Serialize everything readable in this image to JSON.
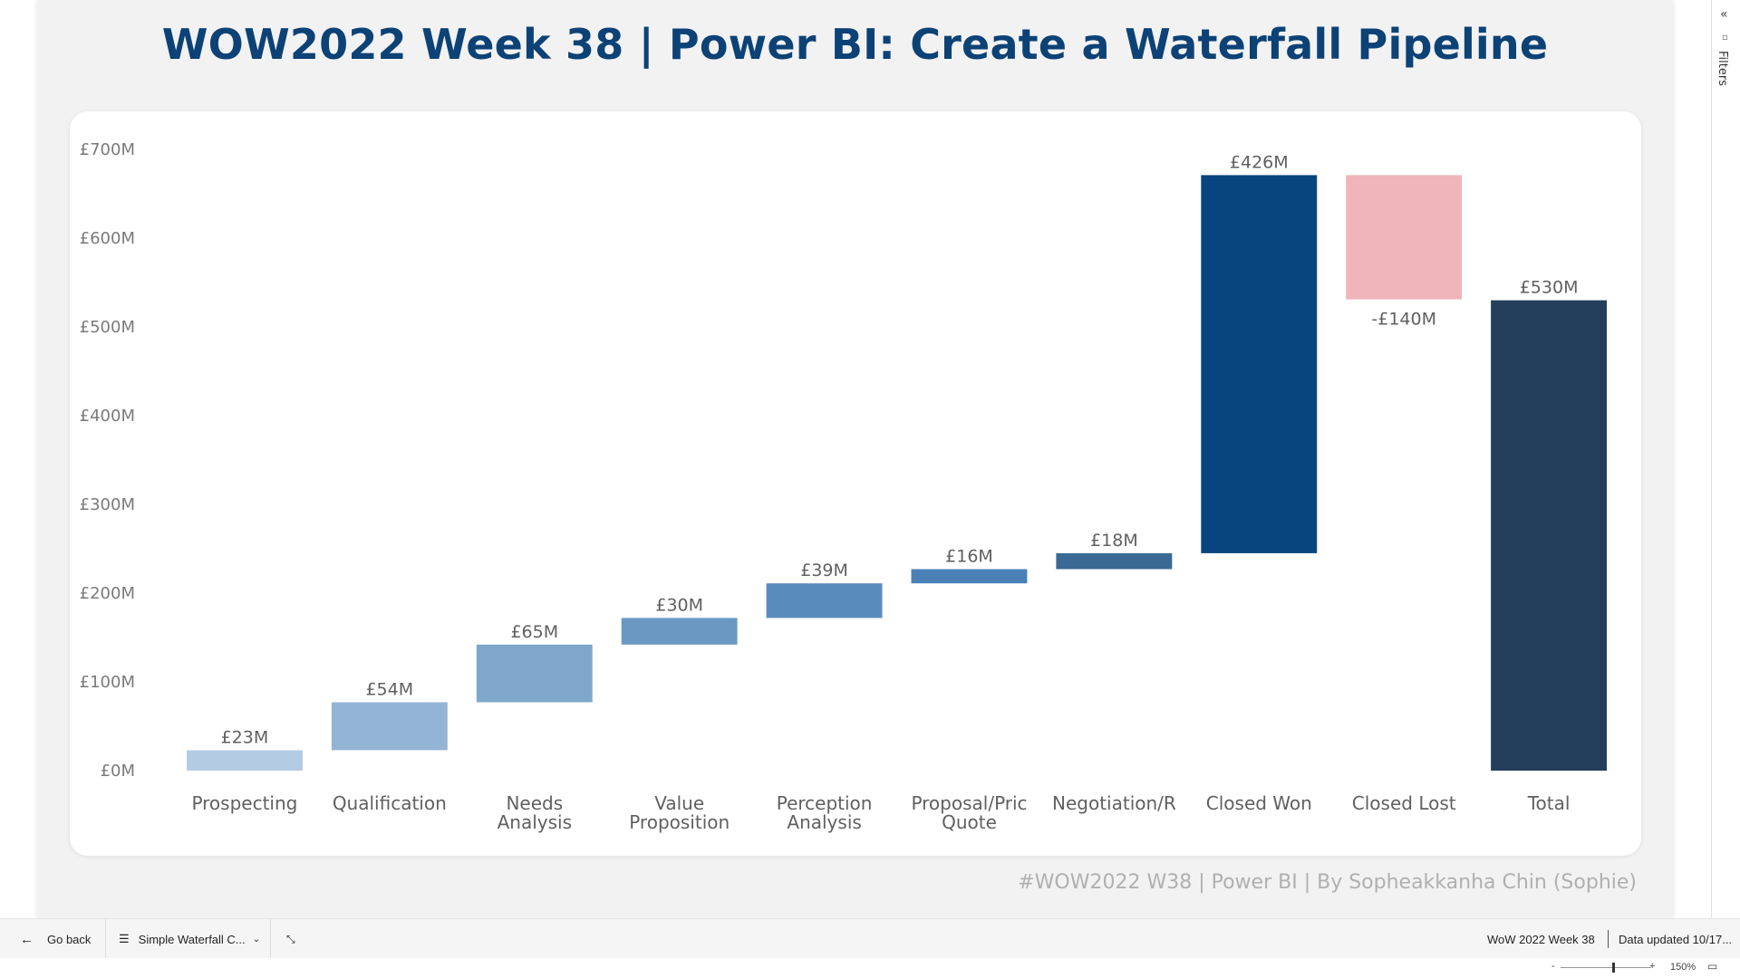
{
  "report": {
    "title": "WOW2022 Week 38 | Power BI: Create a Waterfall Pipeline",
    "footer_credit": "#WOW2022 W38 | Power BI | By Sopheakkanha Chin (Sophie)"
  },
  "filters_pane": {
    "label": "Filters",
    "collapse_icon": "chevron-double-left-icon"
  },
  "bottom_bar": {
    "go_back_label": "Go back",
    "page_selector_label": "Simple Waterfall C...",
    "report_name": "WoW 2022 Week 38",
    "data_updated": "Data updated 10/17..."
  },
  "status_bar": {
    "zoom_minus": "-",
    "zoom_plus": "+",
    "zoom_level": "150%",
    "zoom_fraction": 0.58
  },
  "colors": {
    "title": "#0c4276",
    "closed_lost": "#efb5b8",
    "total": "#243f5c"
  },
  "chart_data": {
    "type": "bar",
    "subtype": "waterfall",
    "title": "",
    "xlabel": "",
    "ylabel": "",
    "ylim": [
      0,
      700
    ],
    "y_ticks": [
      0,
      100,
      200,
      300,
      400,
      500,
      600,
      700
    ],
    "y_tick_labels": [
      "£0M",
      "£100M",
      "£200M",
      "£300M",
      "£400M",
      "£500M",
      "£600M",
      "£700M"
    ],
    "grid": false,
    "legend": "none",
    "categories": [
      [
        "Prospecting"
      ],
      [
        "Qualification"
      ],
      [
        "Needs",
        "Analysis"
      ],
      [
        "Value",
        "Proposition"
      ],
      [
        "Perception",
        "Analysis"
      ],
      [
        "Proposal/Pric",
        "Quote"
      ],
      [
        "Negotiation/R"
      ],
      [
        "Closed Won"
      ],
      [
        "Closed Lost"
      ],
      [
        "Total"
      ]
    ],
    "values": [
      23,
      54,
      65,
      30,
      39,
      16,
      18,
      426,
      -140,
      530
    ],
    "value_labels": [
      "£23M",
      "£54M",
      "£65M",
      "£30M",
      "£39M",
      "£16M",
      "£18M",
      "£426M",
      "-£140M",
      "£530M"
    ],
    "is_total": [
      false,
      false,
      false,
      false,
      false,
      false,
      false,
      false,
      false,
      true
    ],
    "bar_colors": [
      "#b4cce3",
      "#93b4d4",
      "#7fa7cb",
      "#6a98c3",
      "#5a8bbd",
      "#4a80b6",
      "#3a6993",
      "#08457e",
      "#efb5b8",
      "#243f5c"
    ]
  }
}
